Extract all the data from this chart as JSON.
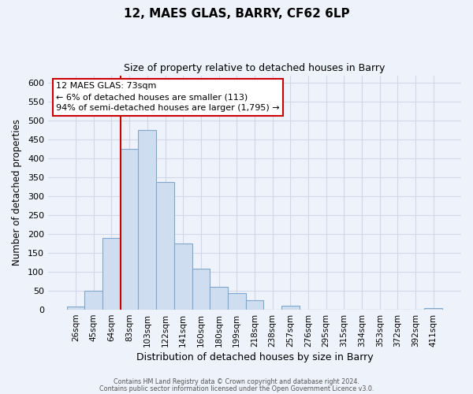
{
  "title": "12, MAES GLAS, BARRY, CF62 6LP",
  "subtitle": "Size of property relative to detached houses in Barry",
  "xlabel": "Distribution of detached houses by size in Barry",
  "ylabel": "Number of detached properties",
  "bar_labels": [
    "26sqm",
    "45sqm",
    "64sqm",
    "83sqm",
    "103sqm",
    "122sqm",
    "141sqm",
    "160sqm",
    "180sqm",
    "199sqm",
    "218sqm",
    "238sqm",
    "257sqm",
    "276sqm",
    "295sqm",
    "315sqm",
    "334sqm",
    "353sqm",
    "372sqm",
    "392sqm",
    "411sqm"
  ],
  "bar_values": [
    8,
    50,
    190,
    425,
    475,
    338,
    175,
    108,
    60,
    44,
    25,
    0,
    10,
    0,
    0,
    0,
    0,
    0,
    0,
    0,
    5
  ],
  "bar_color": "#cfddf0",
  "bar_edge_color": "#7fa8cc",
  "vline_color": "#cc0000",
  "vline_index": 3,
  "ylim": [
    0,
    620
  ],
  "yticks": [
    0,
    50,
    100,
    150,
    200,
    250,
    300,
    350,
    400,
    450,
    500,
    550,
    600
  ],
  "annotation_title": "12 MAES GLAS: 73sqm",
  "annotation_line1": "← 6% of detached houses are smaller (113)",
  "annotation_line2": "94% of semi-detached houses are larger (1,795) →",
  "annotation_box_color": "#ffffff",
  "annotation_box_edge": "#cc0000",
  "footer_line1": "Contains HM Land Registry data © Crown copyright and database right 2024.",
  "footer_line2": "Contains public sector information licensed under the Open Government Licence v3.0.",
  "background_color": "#eef2fa",
  "grid_color": "#d0d8e8",
  "plot_bg_color": "#eef2fa"
}
